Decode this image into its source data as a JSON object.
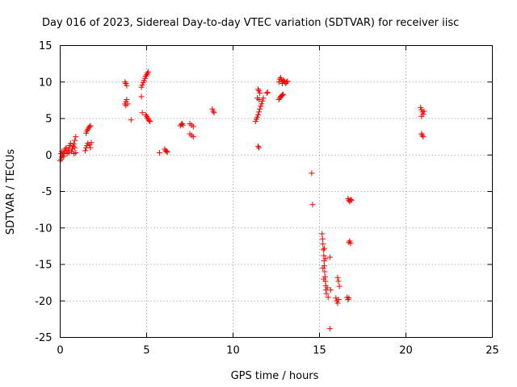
{
  "chart_data": {
    "type": "scatter",
    "title": "Day 016 of 2023, Sidereal Day-to-day VTEC variation (SDTVAR) for receiver iisc",
    "xlabel": "GPS time / hours",
    "ylabel": "SDTVAR / TECUs",
    "xlim": [
      0,
      25
    ],
    "ylim": [
      -25,
      15
    ],
    "xticks": [
      0,
      5,
      10,
      15,
      20,
      25
    ],
    "yticks": [
      -25,
      -20,
      -15,
      -10,
      -5,
      0,
      5,
      10,
      15
    ],
    "xtick_labels": [
      "0",
      "5",
      "10",
      "15",
      "20",
      "25"
    ],
    "ytick_labels": [
      "-25",
      "-20",
      "-15",
      "-10",
      "-5",
      "0",
      "5",
      "10",
      "15"
    ],
    "grid": true,
    "marker": "plus",
    "color": "#ff0000",
    "series": [
      {
        "name": "SDTVAR",
        "points": [
          [
            0.0,
            -0.8
          ],
          [
            0.05,
            -0.6
          ],
          [
            0.1,
            -0.3
          ],
          [
            0.15,
            0.0
          ],
          [
            0.2,
            0.3
          ],
          [
            0.25,
            0.5
          ],
          [
            0.3,
            0.8
          ],
          [
            0.35,
            1.0
          ],
          [
            0.1,
            0.5
          ],
          [
            0.2,
            -0.2
          ],
          [
            0.05,
            0.2
          ],
          [
            0.4,
            0.2
          ],
          [
            0.45,
            0.6
          ],
          [
            0.5,
            1.0
          ],
          [
            0.55,
            1.3
          ],
          [
            0.6,
            1.6
          ],
          [
            0.5,
            0.3
          ],
          [
            0.65,
            0.5
          ],
          [
            0.7,
            0.8
          ],
          [
            0.75,
            1.2
          ],
          [
            0.8,
            1.5
          ],
          [
            0.85,
            2.0
          ],
          [
            0.9,
            2.5
          ],
          [
            0.85,
            1.0
          ],
          [
            0.9,
            0.3
          ],
          [
            0.8,
            0.2
          ],
          [
            1.45,
            0.6
          ],
          [
            1.5,
            1.0
          ],
          [
            1.55,
            1.3
          ],
          [
            1.6,
            1.6
          ],
          [
            1.7,
            1.4
          ],
          [
            1.75,
            1.0
          ],
          [
            1.8,
            1.7
          ],
          [
            1.5,
            3.0
          ],
          [
            1.55,
            3.3
          ],
          [
            1.6,
            3.5
          ],
          [
            1.65,
            3.7
          ],
          [
            1.7,
            3.9
          ],
          [
            1.75,
            4.0
          ],
          [
            3.75,
            10.0
          ],
          [
            3.8,
            9.8
          ],
          [
            3.85,
            9.5
          ],
          [
            3.75,
            7.0
          ],
          [
            3.8,
            7.3
          ],
          [
            3.85,
            7.6
          ],
          [
            3.9,
            7.0
          ],
          [
            3.8,
            6.8
          ],
          [
            4.1,
            4.8
          ],
          [
            4.7,
            8.0
          ],
          [
            4.75,
            5.8
          ],
          [
            4.7,
            9.3
          ],
          [
            4.75,
            9.6
          ],
          [
            4.8,
            9.9
          ],
          [
            4.85,
            10.2
          ],
          [
            4.9,
            10.5
          ],
          [
            4.95,
            10.8
          ],
          [
            5.0,
            11.0
          ],
          [
            5.05,
            11.2
          ],
          [
            5.1,
            11.4
          ],
          [
            4.95,
            5.5
          ],
          [
            5.0,
            5.3
          ],
          [
            5.05,
            5.1
          ],
          [
            5.1,
            4.9
          ],
          [
            5.15,
            4.7
          ],
          [
            5.2,
            4.6
          ],
          [
            5.75,
            0.3
          ],
          [
            6.05,
            0.8
          ],
          [
            6.1,
            0.6
          ],
          [
            6.15,
            0.5
          ],
          [
            6.2,
            0.4
          ],
          [
            6.95,
            4.0
          ],
          [
            7.0,
            4.2
          ],
          [
            7.05,
            4.3
          ],
          [
            7.1,
            4.1
          ],
          [
            7.5,
            4.3
          ],
          [
            7.6,
            4.1
          ],
          [
            7.7,
            3.9
          ],
          [
            7.5,
            2.9
          ],
          [
            7.6,
            2.7
          ],
          [
            7.7,
            2.5
          ],
          [
            8.8,
            6.3
          ],
          [
            8.85,
            6.0
          ],
          [
            8.9,
            5.8
          ],
          [
            11.3,
            4.6
          ],
          [
            11.35,
            4.9
          ],
          [
            11.4,
            5.2
          ],
          [
            11.45,
            5.5
          ],
          [
            11.5,
            5.9
          ],
          [
            11.55,
            6.3
          ],
          [
            11.6,
            6.7
          ],
          [
            11.65,
            7.0
          ],
          [
            11.7,
            7.4
          ],
          [
            11.75,
            7.8
          ],
          [
            11.45,
            9.0
          ],
          [
            11.5,
            8.8
          ],
          [
            11.55,
            8.5
          ],
          [
            11.5,
            7.6
          ],
          [
            11.4,
            7.8
          ],
          [
            11.45,
            1.2
          ],
          [
            11.5,
            1.0
          ],
          [
            11.95,
            8.5
          ],
          [
            12.0,
            8.6
          ],
          [
            12.65,
            7.6
          ],
          [
            12.7,
            7.8
          ],
          [
            12.75,
            8.0
          ],
          [
            12.8,
            8.1
          ],
          [
            12.85,
            8.2
          ],
          [
            12.9,
            8.3
          ],
          [
            12.65,
            10.0
          ],
          [
            12.7,
            10.4
          ],
          [
            12.75,
            10.6
          ],
          [
            12.8,
            10.3
          ],
          [
            12.85,
            9.8
          ],
          [
            12.9,
            10.1
          ],
          [
            12.95,
            10.2
          ],
          [
            13.0,
            10.0
          ],
          [
            13.05,
            9.8
          ],
          [
            13.1,
            10.0
          ],
          [
            13.15,
            10.1
          ],
          [
            14.55,
            -2.5
          ],
          [
            14.6,
            -6.8
          ],
          [
            15.15,
            -10.8
          ],
          [
            15.18,
            -11.5
          ],
          [
            15.2,
            -12.2
          ],
          [
            15.22,
            -13.0
          ],
          [
            15.25,
            -13.8
          ],
          [
            15.27,
            -14.5
          ],
          [
            15.28,
            -15.2
          ],
          [
            15.3,
            -16.0
          ],
          [
            15.32,
            -16.7
          ],
          [
            15.34,
            -17.3
          ],
          [
            15.36,
            -17.9
          ],
          [
            15.38,
            -18.5
          ],
          [
            15.4,
            -19.0
          ],
          [
            15.2,
            -15.5
          ],
          [
            15.25,
            -17.0
          ],
          [
            15.45,
            -18.2
          ],
          [
            15.5,
            -19.5
          ],
          [
            15.35,
            -14.2
          ],
          [
            15.28,
            -12.8
          ],
          [
            15.6,
            -14.0
          ],
          [
            15.65,
            -18.5
          ],
          [
            15.6,
            -23.8
          ],
          [
            15.95,
            -19.6
          ],
          [
            16.0,
            -20.0
          ],
          [
            16.05,
            -20.3
          ],
          [
            16.1,
            -19.8
          ],
          [
            16.05,
            -16.8
          ],
          [
            16.1,
            -17.3
          ],
          [
            16.15,
            -18.0
          ],
          [
            16.6,
            -19.5
          ],
          [
            16.65,
            -19.8
          ],
          [
            16.7,
            -19.6
          ],
          [
            16.65,
            -6.0
          ],
          [
            16.7,
            -6.2
          ],
          [
            16.75,
            -6.4
          ],
          [
            16.8,
            -6.1
          ],
          [
            16.85,
            -6.2
          ],
          [
            16.7,
            -12.0
          ],
          [
            16.75,
            -11.8
          ],
          [
            16.8,
            -12.1
          ],
          [
            20.85,
            6.5
          ],
          [
            20.9,
            6.2
          ],
          [
            20.95,
            5.9
          ],
          [
            21.0,
            5.6
          ],
          [
            20.9,
            5.3
          ],
          [
            21.05,
            6.0
          ],
          [
            20.9,
            2.9
          ],
          [
            20.95,
            2.7
          ],
          [
            21.0,
            2.5
          ]
        ]
      }
    ]
  }
}
